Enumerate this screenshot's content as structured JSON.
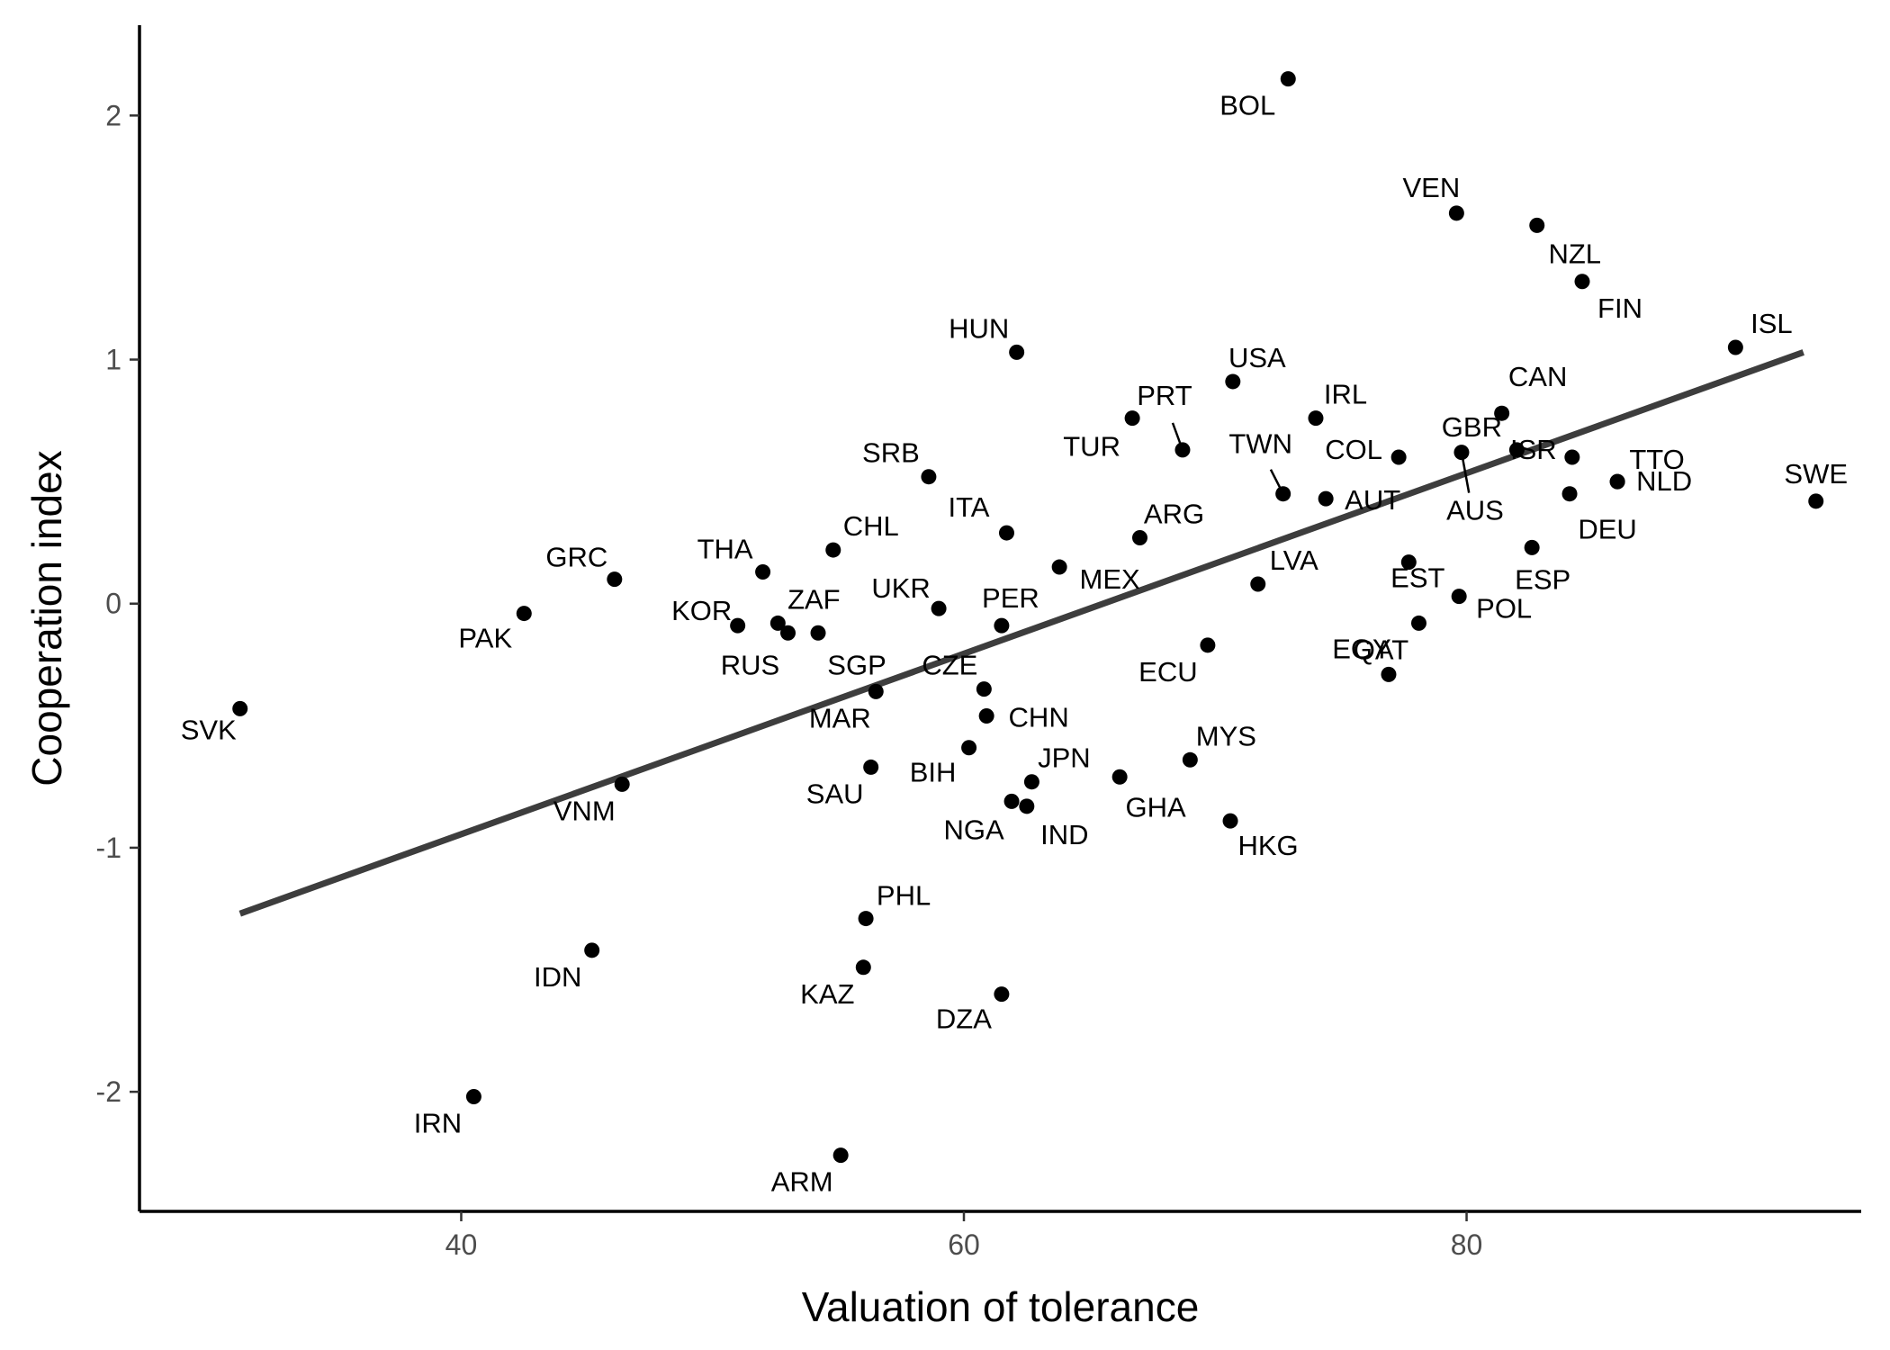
{
  "chart_data": {
    "type": "scatter",
    "xlabel": "Valuation of tolerance",
    "ylabel": "Cooperation index",
    "xlim": [
      27.2,
      95.7
    ],
    "ylim": [
      -2.49,
      2.37
    ],
    "xticks": [
      40,
      60,
      80
    ],
    "xtick_labels": [
      "40",
      "60",
      "80"
    ],
    "yticks": [
      -2,
      -1,
      0,
      1,
      2
    ],
    "ytick_labels": [
      "-2",
      "-1",
      "0",
      "1",
      "2"
    ],
    "grid": false,
    "legend": "none",
    "trend_line": {
      "x": [
        31.2,
        93.4
      ],
      "y": [
        -1.27,
        1.03
      ]
    },
    "points": [
      {
        "label": "SVK",
        "x": 31.2,
        "y": -0.43
      },
      {
        "label": "PAK",
        "x": 42.5,
        "y": -0.04
      },
      {
        "label": "GRC",
        "x": 46.1,
        "y": 0.1
      },
      {
        "label": "VNM",
        "x": 46.4,
        "y": -0.74
      },
      {
        "label": "IRN",
        "x": 40.5,
        "y": -2.02
      },
      {
        "label": "IDN",
        "x": 45.2,
        "y": -1.42
      },
      {
        "label": "KOR",
        "x": 51.0,
        "y": -0.09
      },
      {
        "label": "THA",
        "x": 52.0,
        "y": 0.13
      },
      {
        "label": "ZAF",
        "x": 52.6,
        "y": -0.08
      },
      {
        "label": "RUS",
        "x": 53.0,
        "y": -0.12
      },
      {
        "label": "SGP",
        "x": 54.2,
        "y": -0.12
      },
      {
        "label": "CHL",
        "x": 54.8,
        "y": 0.22
      },
      {
        "label": "ARM",
        "x": 55.1,
        "y": -2.26
      },
      {
        "label": "KAZ",
        "x": 56.0,
        "y": -1.49
      },
      {
        "label": "PHL",
        "x": 56.1,
        "y": -1.29
      },
      {
        "label": "SAU",
        "x": 56.3,
        "y": -0.67
      },
      {
        "label": "MAR",
        "x": 56.5,
        "y": -0.36
      },
      {
        "label": "SRB",
        "x": 58.6,
        "y": 0.52
      },
      {
        "label": "UKR",
        "x": 59.0,
        "y": -0.02
      },
      {
        "label": "BIH",
        "x": 60.2,
        "y": -0.59
      },
      {
        "label": "CZE",
        "x": 60.8,
        "y": -0.35
      },
      {
        "label": "CHN",
        "x": 60.9,
        "y": -0.46
      },
      {
        "label": "PER",
        "x": 61.5,
        "y": -0.09
      },
      {
        "label": "DZA",
        "x": 61.5,
        "y": -1.6
      },
      {
        "label": "ITA",
        "x": 61.7,
        "y": 0.29
      },
      {
        "label": "NGA",
        "x": 61.9,
        "y": -0.81
      },
      {
        "label": "HUN",
        "x": 62.1,
        "y": 1.03
      },
      {
        "label": "IND",
        "x": 62.5,
        "y": -0.83
      },
      {
        "label": "JPN",
        "x": 62.7,
        "y": -0.73
      },
      {
        "label": "MEX",
        "x": 63.8,
        "y": 0.15
      },
      {
        "label": "GHA",
        "x": 66.2,
        "y": -0.71
      },
      {
        "label": "TUR",
        "x": 66.7,
        "y": 0.76
      },
      {
        "label": "ARG",
        "x": 67.0,
        "y": 0.27
      },
      {
        "label": "PRT",
        "x": 68.7,
        "y": 0.63
      },
      {
        "label": "MYS",
        "x": 69.0,
        "y": -0.64
      },
      {
        "label": "ECU",
        "x": 69.7,
        "y": -0.17
      },
      {
        "label": "HKG",
        "x": 70.6,
        "y": -0.89
      },
      {
        "label": "USA",
        "x": 70.7,
        "y": 0.91
      },
      {
        "label": "LVA",
        "x": 71.7,
        "y": 0.08
      },
      {
        "label": "BOL",
        "x": 72.9,
        "y": 2.15
      },
      {
        "label": "TWN",
        "x": 72.7,
        "y": 0.45
      },
      {
        "label": "IRL",
        "x": 74.0,
        "y": 0.76
      },
      {
        "label": "AUT",
        "x": 74.4,
        "y": 0.43
      },
      {
        "label": "EGY",
        "x": 76.9,
        "y": -0.29
      },
      {
        "label": "COL",
        "x": 77.3,
        "y": 0.6
      },
      {
        "label": "EST",
        "x": 77.7,
        "y": 0.17
      },
      {
        "label": "QAT",
        "x": 78.1,
        "y": -0.08
      },
      {
        "label": "VEN",
        "x": 79.6,
        "y": 1.6
      },
      {
        "label": "POL",
        "x": 79.7,
        "y": 0.03
      },
      {
        "label": "AUS",
        "x": 79.8,
        "y": 0.62
      },
      {
        "label": "CAN",
        "x": 81.4,
        "y": 0.78
      },
      {
        "label": "GBR",
        "x": 82.0,
        "y": 0.63
      },
      {
        "label": "ESP",
        "x": 82.6,
        "y": 0.23
      },
      {
        "label": "NZL",
        "x": 82.8,
        "y": 1.55
      },
      {
        "label": "DEU",
        "x": 84.1,
        "y": 0.45
      },
      {
        "label": "ISR",
        "x": 84.2,
        "y": 0.6
      },
      {
        "label": "FIN",
        "x": 84.6,
        "y": 1.32
      },
      {
        "label": "TTO",
        "x": 86.0,
        "y": 0.5
      },
      {
        "label": "NLD",
        "x": 86.0,
        "y": 0.5
      },
      {
        "label": "ISL",
        "x": 90.7,
        "y": 1.05
      },
      {
        "label": "SWE",
        "x": 93.9,
        "y": 0.42
      }
    ]
  }
}
